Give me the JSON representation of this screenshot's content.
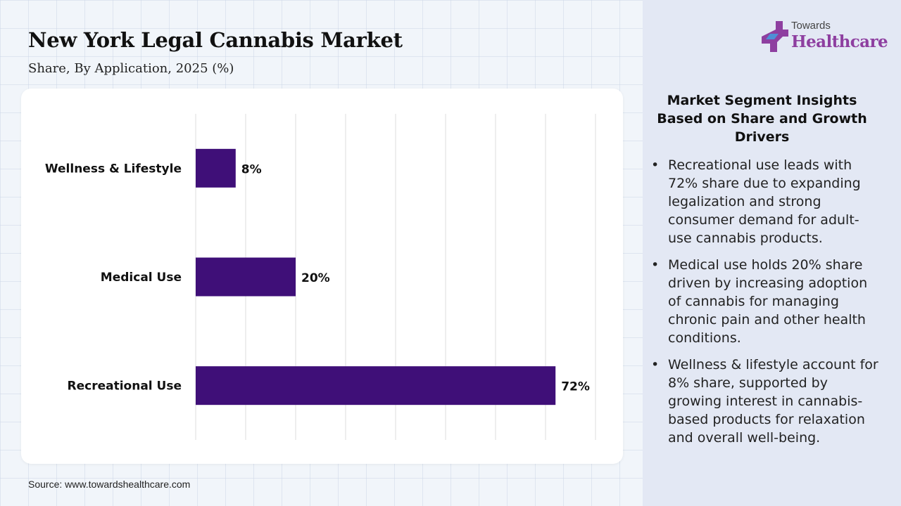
{
  "header": {
    "title": "New York Legal Cannabis Market",
    "subtitle": "Share, By Application, 2025 (%)"
  },
  "logo": {
    "line1": "Towards",
    "line2": "Healthcare",
    "icon": "medical-cross-icon"
  },
  "chart_data": {
    "type": "bar",
    "orientation": "horizontal",
    "categories": [
      "Wellness & Lifestyle",
      "Medical Use",
      "Recreational Use"
    ],
    "values": [
      8,
      20,
      72
    ],
    "value_labels": [
      "8%",
      "20%",
      "72%"
    ],
    "xlim": [
      0,
      80
    ],
    "x_gridlines": [
      0,
      10,
      20,
      30,
      40,
      50,
      60,
      70,
      80
    ],
    "grid": true,
    "bar_color": "#3f0f78"
  },
  "insights": {
    "title": "Market Segment Insights Based on Share and Growth Drivers",
    "bullet_symbol": "•",
    "items": [
      "Recreational use leads with 72% share due to expanding legalization and strong consumer demand for adult-use cannabis products.",
      "Medical use holds 20% share driven by increasing adoption of cannabis for managing chronic pain and other health conditions.",
      "Wellness & lifestyle account for 8% share, supported by growing interest in cannabis-based products for relaxation and overall well-being."
    ]
  },
  "source": "Source: www.towardshealthcare.com",
  "colors": {
    "accent": "#3f0f78",
    "brand": "#8e3fa0",
    "panel": "#e3e8f4"
  }
}
